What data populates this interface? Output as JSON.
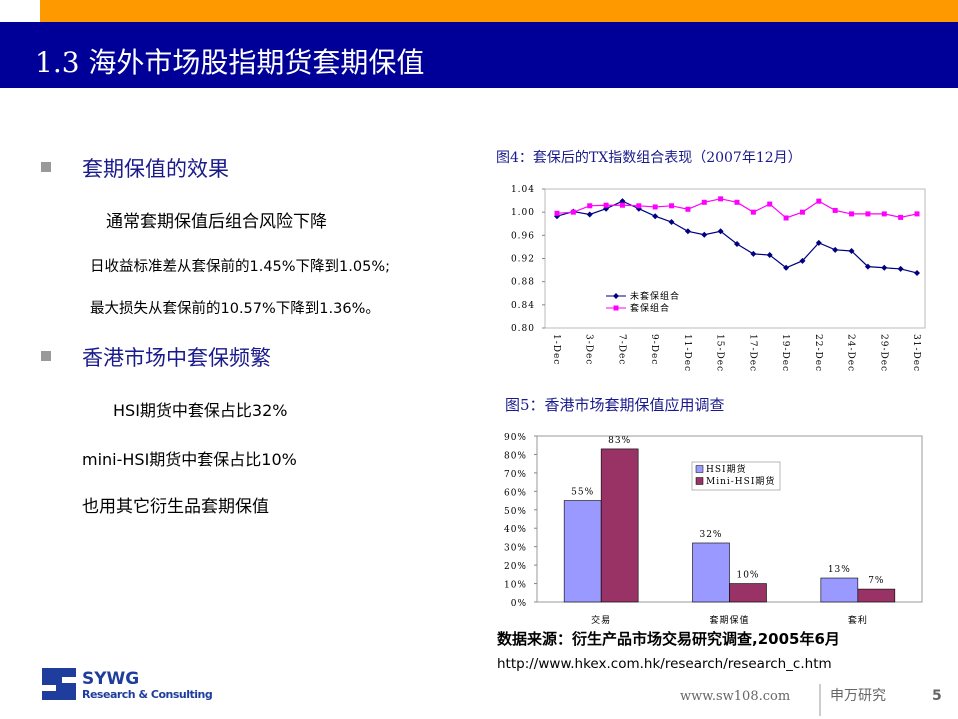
{
  "header": {
    "title": "1.3 海外市场股指期货套期保值"
  },
  "body": [
    "套期保值的效果",
    "通常套期保值后组合风险下降",
    "日收益标准差从套保前的1.45%下降到1.05%;",
    "最大损失从套保前的10.57%下降到1.36%。",
    "香港市场中套保频繁",
    "HSI期货中套保占比32%",
    "mini-HSI期货中套保占比10%",
    "也用其它衍生品套期保值"
  ],
  "chart_data": [
    {
      "type": "line",
      "title": "图4：套保后的TX指数组合表现（2007年12月）",
      "categories": [
        "1-Dec",
        null,
        "3-Dec",
        null,
        "7-Dec",
        null,
        "9-Dec",
        null,
        "11-Dec",
        null,
        "15-Dec",
        null,
        "17-Dec",
        null,
        "19-Dec",
        null,
        "22-Dec",
        null,
        "24-Dec",
        null,
        "29-Dec",
        null,
        "31-Dec"
      ],
      "series": [
        {
          "name": "未套保组合",
          "color": "#000080",
          "values": [
            0.993,
            1.001,
            0.996,
            1.006,
            1.019,
            1.006,
            0.993,
            0.983,
            0.967,
            0.961,
            0.967,
            0.945,
            0.928,
            0.926,
            0.904,
            0.916,
            0.947,
            0.935,
            0.933,
            0.906,
            0.904,
            0.902,
            0.895
          ]
        },
        {
          "name": "套保组合",
          "color": "#ff00ff",
          "values": [
            0.998,
            1.0,
            1.011,
            1.012,
            1.012,
            1.011,
            1.009,
            1.011,
            1.005,
            1.017,
            1.023,
            1.017,
            1.0,
            1.014,
            0.99,
            1.0,
            1.019,
            1.003,
            0.997,
            0.997,
            0.997,
            0.991,
            0.997
          ]
        }
      ],
      "ylim": [
        0.8,
        1.04
      ],
      "yticks": [
        {
          "value": 0.8,
          "label": "0.80"
        },
        0.84,
        0.88,
        0.92,
        0.96,
        {
          "value": 1.0,
          "label": "1.00"
        },
        1.04
      ],
      "grid": false,
      "legend": "bottom-left"
    },
    {
      "type": "bar",
      "title": "图5：香港市场套期保值应用调查",
      "categories": [
        "交易",
        "套期保值",
        "套利"
      ],
      "series": [
        {
          "name": "HSI期货",
          "color": "#9999ff",
          "values": [
            55,
            32,
            13
          ],
          "value_labels": [
            "55%",
            "32%",
            "13%"
          ]
        },
        {
          "name": "Mini-HSI期货",
          "color": "#993366",
          "values": [
            83,
            10,
            7
          ],
          "value_labels": [
            "83%",
            "10%",
            "7%"
          ]
        }
      ],
      "ylim": [
        0,
        90
      ],
      "yticks": [
        {
          "value": 0,
          "label": "0%"
        },
        {
          "value": 10,
          "label": "10%"
        },
        {
          "value": 20,
          "label": "20%"
        },
        {
          "value": 30,
          "label": "30%"
        },
        {
          "value": 40,
          "label": "40%"
        },
        {
          "value": 50,
          "label": "50%"
        },
        {
          "value": 60,
          "label": "60%"
        },
        {
          "value": 70,
          "label": "70%"
        },
        {
          "value": 80,
          "label": "80%"
        },
        {
          "value": 90,
          "label": "90%"
        }
      ],
      "grid": false,
      "legend": "top-right"
    }
  ],
  "source": [
    "数据来源：衍生产品市场交易研究调查,2005年6月",
    "http://www.hkex.com.hk/research/research_c.htm"
  ],
  "footer": {
    "logo": "SYWG",
    "logo_sub": "Research & Consulting",
    "url": "www.sw108.com",
    "org": "申万研究",
    "page": "5"
  }
}
